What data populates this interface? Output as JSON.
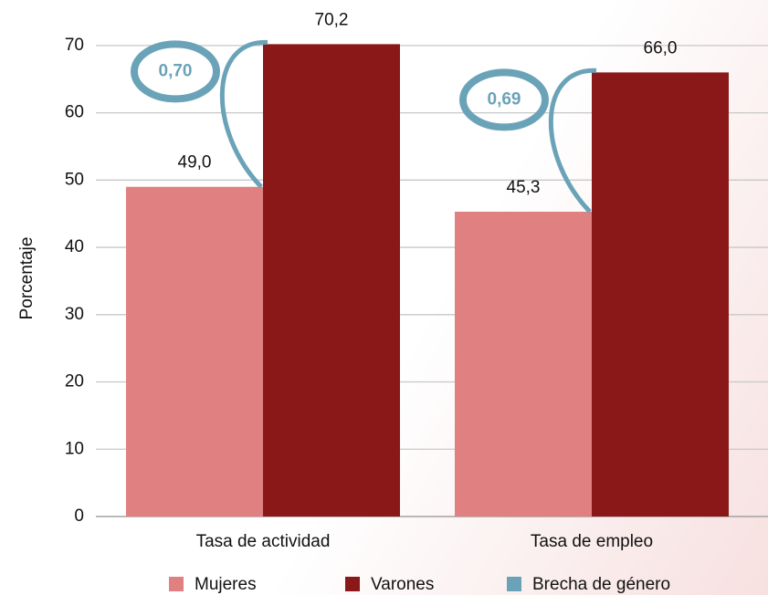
{
  "chart_data": {
    "type": "bar",
    "y_label": "Porcentaje",
    "categories": [
      "Tasa de actividad",
      "Tasa de empleo"
    ],
    "series": [
      {
        "name": "Mujeres",
        "color": "#e08080",
        "values": [
          49.0,
          45.3
        ],
        "value_labels": [
          "49,0",
          "45,3"
        ]
      },
      {
        "name": "Varones",
        "color": "#8b1818",
        "values": [
          70.2,
          66.0
        ],
        "value_labels": [
          "70,2",
          "66,0"
        ]
      },
      {
        "name": "Brecha de género",
        "color": "#6aa3b8",
        "values": [
          0.7,
          0.69
        ],
        "value_labels": [
          "0,70",
          "0,69"
        ]
      }
    ],
    "ylim": [
      0,
      75
    ],
    "yticks": [
      0,
      10,
      20,
      30,
      40,
      50,
      60,
      70
    ],
    "grid": true
  }
}
